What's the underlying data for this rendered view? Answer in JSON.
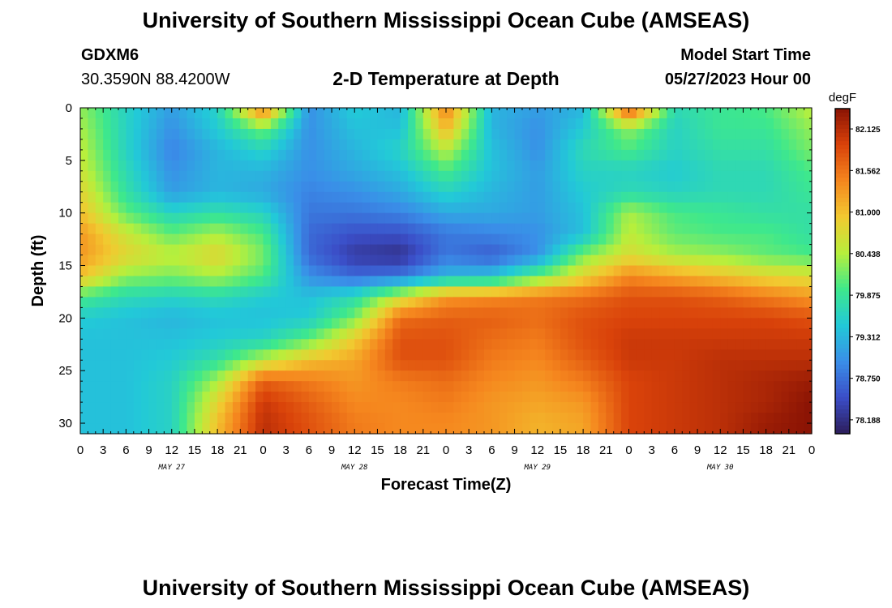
{
  "header": {
    "title": "University of Southern Mississippi Ocean Cube (AMSEAS)",
    "station_id": "GDXM6",
    "coordinates": "30.3590N  88.4200W",
    "plot_title": "2-D Temperature at Depth",
    "start_label": "Model Start Time",
    "start_value": "05/27/2023 Hour 00"
  },
  "footer": {
    "title": "University of Southern Mississippi Ocean Cube (AMSEAS)"
  },
  "chart_data": {
    "type": "heatmap",
    "title": "2-D Temperature at Depth",
    "xlabel": "Forecast Time(Z)",
    "ylabel": "Depth (ft)",
    "x_ticks": [
      "0",
      "3",
      "6",
      "9",
      "12",
      "15",
      "18",
      "21",
      "0",
      "3",
      "6",
      "9",
      "12",
      "15",
      "18",
      "21",
      "0",
      "3",
      "6",
      "9",
      "12",
      "15",
      "18",
      "21",
      "0",
      "3",
      "6",
      "9",
      "12",
      "15",
      "18",
      "21",
      "0"
    ],
    "day_labels": [
      "MAY 27",
      "MAY 28",
      "MAY 29",
      "MAY 30"
    ],
    "y_ticks": [
      "0",
      "5",
      "10",
      "15",
      "20",
      "25",
      "30"
    ],
    "xlim": [
      0,
      96
    ],
    "ylim": [
      31,
      0
    ],
    "colorbar": {
      "unit": "degF",
      "min": 78.0,
      "max": 82.4,
      "ticks": [
        "82.125",
        "81.562",
        "81.000",
        "80.438",
        "79.875",
        "79.312",
        "78.750",
        "78.188"
      ],
      "tick_values": [
        82.125,
        81.562,
        81.0,
        80.438,
        79.875,
        79.312,
        78.75,
        78.188
      ]
    },
    "colors": [
      "#2c1d5a",
      "#3b4ec8",
      "#3a8ee8",
      "#22c9d8",
      "#3ee88c",
      "#b7ef3c",
      "#f2c930",
      "#f5861e",
      "#d9420a",
      "#8a1304"
    ],
    "time_hours": [
      0,
      6,
      12,
      18,
      24,
      30,
      36,
      42,
      48,
      54,
      60,
      66,
      72,
      78,
      84,
      90,
      96
    ],
    "depths_ft": [
      0,
      2,
      4,
      6,
      8,
      10,
      12,
      14,
      16,
      18,
      20,
      22,
      24,
      26,
      28,
      30
    ],
    "temperature_degF": [
      [
        80.3,
        79.6,
        79.1,
        79.6,
        81.6,
        79.0,
        79.5,
        79.3,
        81.5,
        79.3,
        79.1,
        79.3,
        81.9,
        79.7,
        79.9,
        80.0,
        80.5
      ],
      [
        80.4,
        79.6,
        79.0,
        79.5,
        80.2,
        79.0,
        79.4,
        79.4,
        81.1,
        79.3,
        79.0,
        79.5,
        80.3,
        79.6,
        79.9,
        79.9,
        80.3
      ],
      [
        80.5,
        79.6,
        78.9,
        79.3,
        79.6,
        79.0,
        79.3,
        79.6,
        80.5,
        79.4,
        79.0,
        79.7,
        80.0,
        79.6,
        79.8,
        79.8,
        80.2
      ],
      [
        80.6,
        79.7,
        79.0,
        79.3,
        79.3,
        79.0,
        79.2,
        79.4,
        80.0,
        79.4,
        79.1,
        79.6,
        79.6,
        79.5,
        79.7,
        79.7,
        80.0
      ],
      [
        80.8,
        79.8,
        79.1,
        79.3,
        79.2,
        78.9,
        79.0,
        79.2,
        79.6,
        79.3,
        79.1,
        79.5,
        79.7,
        79.6,
        79.7,
        79.7,
        79.9
      ],
      [
        81.0,
        80.1,
        79.6,
        79.8,
        79.6,
        78.8,
        78.8,
        78.9,
        79.2,
        79.2,
        79.1,
        79.4,
        80.4,
        80.0,
        79.9,
        79.8,
        79.8
      ],
      [
        81.3,
        80.6,
        80.1,
        80.4,
        80.0,
        78.7,
        78.5,
        78.5,
        78.8,
        78.9,
        79.0,
        79.4,
        80.5,
        80.1,
        80.0,
        80.0,
        79.8
      ],
      [
        81.3,
        80.8,
        80.5,
        80.8,
        80.2,
        78.7,
        78.3,
        78.2,
        78.8,
        78.6,
        79.0,
        80.2,
        80.7,
        80.4,
        80.3,
        80.1,
        80.0
      ],
      [
        81.0,
        80.3,
        80.2,
        80.4,
        80.0,
        79.0,
        78.7,
        78.8,
        79.3,
        79.4,
        80.1,
        80.8,
        81.4,
        81.2,
        81.0,
        80.8,
        80.7
      ],
      [
        80.0,
        79.7,
        79.6,
        79.7,
        79.5,
        79.4,
        79.7,
        80.6,
        81.3,
        81.4,
        81.5,
        81.6,
        81.8,
        81.8,
        81.7,
        81.5,
        81.3
      ],
      [
        79.5,
        79.4,
        79.3,
        79.4,
        79.4,
        79.5,
        80.2,
        81.6,
        81.7,
        81.7,
        81.6,
        81.8,
        81.9,
        81.9,
        81.9,
        81.9,
        81.8
      ],
      [
        79.4,
        79.4,
        79.4,
        79.5,
        79.6,
        80.1,
        80.9,
        81.8,
        81.8,
        81.6,
        81.5,
        81.8,
        82.0,
        82.0,
        82.0,
        82.0,
        82.0
      ],
      [
        79.4,
        79.4,
        79.5,
        79.8,
        80.5,
        81.0,
        81.2,
        81.8,
        81.8,
        81.5,
        81.4,
        81.7,
        82.0,
        82.0,
        82.1,
        82.1,
        82.1
      ],
      [
        79.4,
        79.4,
        79.6,
        80.4,
        81.7,
        81.5,
        81.3,
        81.5,
        81.6,
        81.4,
        81.3,
        81.5,
        81.9,
        82.0,
        82.1,
        82.2,
        82.3
      ],
      [
        79.4,
        79.4,
        79.6,
        80.8,
        82.0,
        81.7,
        81.4,
        81.4,
        81.5,
        81.3,
        81.2,
        81.3,
        81.9,
        82.0,
        82.1,
        82.2,
        82.4
      ],
      [
        79.4,
        79.4,
        79.6,
        81.0,
        82.1,
        81.8,
        81.5,
        81.4,
        81.4,
        81.3,
        81.1,
        81.2,
        81.9,
        82.0,
        82.1,
        82.3,
        82.4
      ]
    ]
  }
}
